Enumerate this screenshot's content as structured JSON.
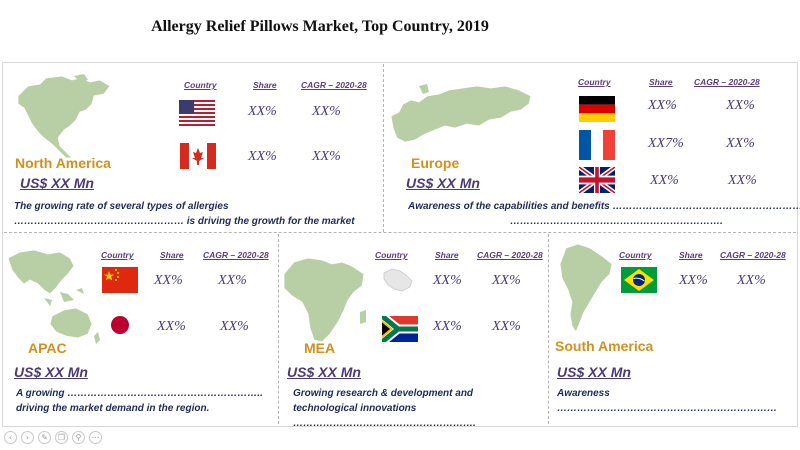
{
  "title": "Allergy Relief Pillows Market, Top Country, 2019",
  "headers": {
    "country": "Country",
    "share": "Share",
    "cagr": "CAGR – 2020-28"
  },
  "panels": {
    "north_america": {
      "region": "North America",
      "market": "US$ XX Mn",
      "line1": "The growing rate of several types of allergies",
      "line2": "…………………………………………… is driving the growth for the market",
      "rows": [
        {
          "flag": "usa-flag",
          "share": "XX%",
          "cagr": "XX%"
        },
        {
          "flag": "canada-flag",
          "share": "XX%",
          "cagr": "XX%"
        }
      ]
    },
    "europe": {
      "region": "Europe",
      "market": "US$ XX Mn",
      "line1": "Awareness of the capabilities and benefits …………………………………………………",
      "line2": "……………………………………………………….",
      "rows": [
        {
          "flag": "germany-flag",
          "share": "XX%",
          "cagr": "XX%"
        },
        {
          "flag": "france-flag",
          "share": "XX7%",
          "cagr": "XX%"
        },
        {
          "flag": "uk-flag",
          "share": "XX%",
          "cagr": "XX%"
        }
      ]
    },
    "apac": {
      "region": "APAC",
      "market": "US$ XX Mn",
      "line1": "A growing …………………………………………………..",
      "line2": "driving the market demand in the region.",
      "rows": [
        {
          "flag": "china-flag",
          "share": "XX%",
          "cagr": "XX%"
        },
        {
          "flag": "japan-flag",
          "share": "XX%",
          "cagr": "XX%"
        }
      ]
    },
    "mea": {
      "region": "MEA",
      "market": "US$ XX Mn",
      "line1": "Growing research & development and",
      "line2": "technological innovations",
      "line3": "……………………………………………….",
      "rows": [
        {
          "flag": "saudi-arabia-map",
          "share": "XX%",
          "cagr": "XX%"
        },
        {
          "flag": "south-africa-flag",
          "share": "XX%",
          "cagr": "XX%"
        }
      ]
    },
    "south_america": {
      "region": "South America",
      "market": "US$ XX Mn",
      "line1": "Awareness",
      "line2": "…………………………………………………………",
      "rows": [
        {
          "flag": "brazil-flag",
          "share": "XX%",
          "cagr": "XX%"
        }
      ]
    }
  },
  "nav_icons": [
    "previous-icon",
    "next-icon",
    "pen-icon",
    "copy-icon",
    "zoom-icon",
    "more-icon"
  ]
}
